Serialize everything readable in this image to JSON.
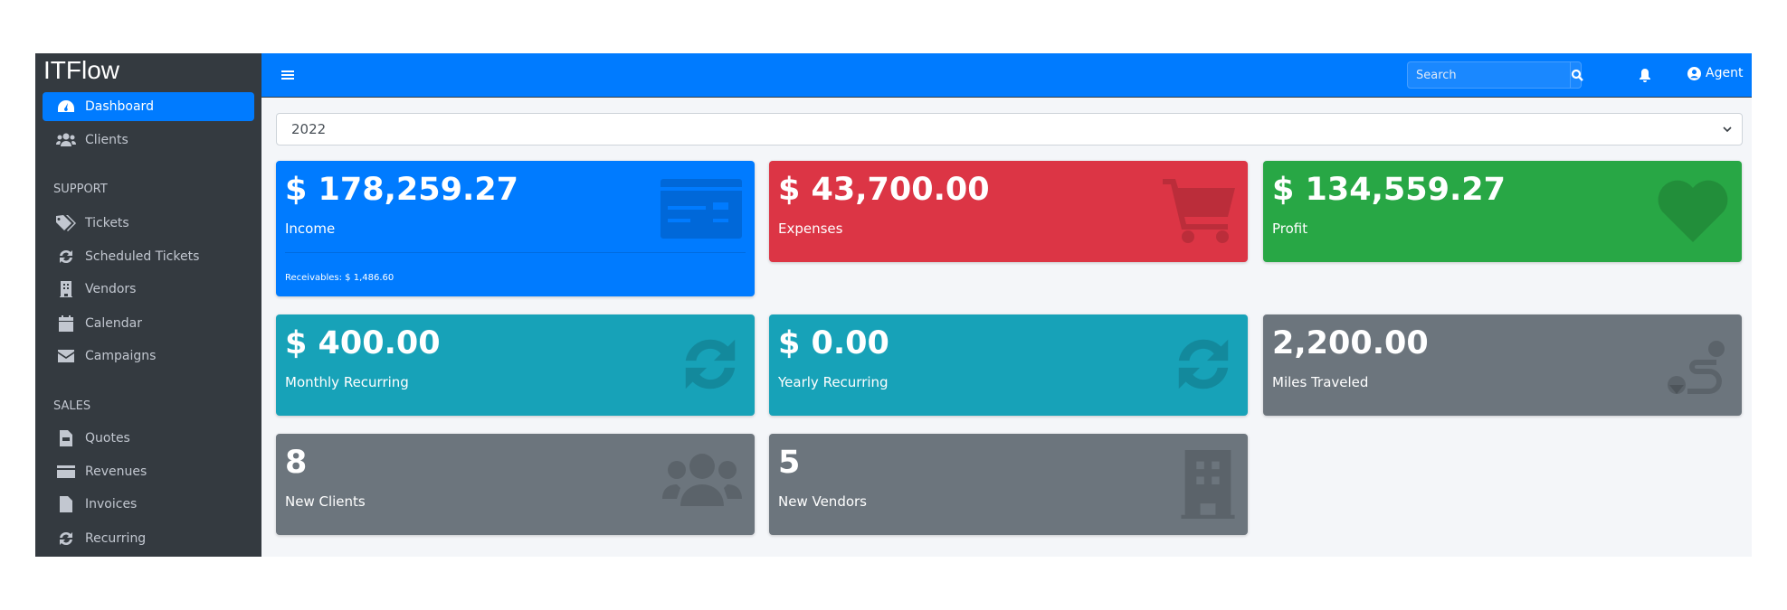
{
  "app": {
    "brand": "ITFlow"
  },
  "sidebar": {
    "items": [
      {
        "label": "Dashboard",
        "icon": "tachometer-icon",
        "active": true
      },
      {
        "label": "Clients",
        "icon": "users-icon"
      },
      {
        "header": "SUPPORT"
      },
      {
        "label": "Tickets",
        "icon": "tags-icon"
      },
      {
        "label": "Scheduled Tickets",
        "icon": "sync-icon"
      },
      {
        "label": "Vendors",
        "icon": "building-icon"
      },
      {
        "label": "Calendar",
        "icon": "calendar-icon"
      },
      {
        "label": "Campaigns",
        "icon": "envelope-icon"
      },
      {
        "header": "SALES"
      },
      {
        "label": "Quotes",
        "icon": "file-icon"
      },
      {
        "label": "Revenues",
        "icon": "credit-card-icon"
      },
      {
        "label": "Invoices",
        "icon": "file-invoice-icon"
      },
      {
        "label": "Recurring",
        "icon": "sync-icon"
      }
    ]
  },
  "topbar": {
    "search_placeholder": "Search",
    "user": "Agent"
  },
  "year_select": {
    "value": "2022"
  },
  "cards": [
    {
      "value": "$ 178,259.27",
      "label": "Income",
      "footer": "Receivables: $ 1,486.60",
      "color": "#007bff",
      "icon": "credit-card-icon"
    },
    {
      "value": "$ 43,700.00",
      "label": "Expenses",
      "color": "#dc3545",
      "icon": "shopping-cart-icon"
    },
    {
      "value": "$ 134,559.27",
      "label": "Profit",
      "color": "#28a745",
      "icon": "heart-icon"
    },
    {
      "value": "$ 400.00",
      "label": "Monthly Recurring",
      "color": "#17a2b8",
      "icon": "sync-icon"
    },
    {
      "value": "$ 0.00",
      "label": "Yearly Recurring",
      "color": "#17a2b8",
      "icon": "sync-icon"
    },
    {
      "value": "2,200.00",
      "label": "Miles Traveled",
      "color": "#6c757d",
      "icon": "route-icon"
    },
    {
      "value": "8",
      "label": "New Clients",
      "color": "#6c757d",
      "icon": "users-icon"
    },
    {
      "value": "5",
      "label": "New Vendors",
      "color": "#6c757d",
      "icon": "building-icon"
    }
  ]
}
